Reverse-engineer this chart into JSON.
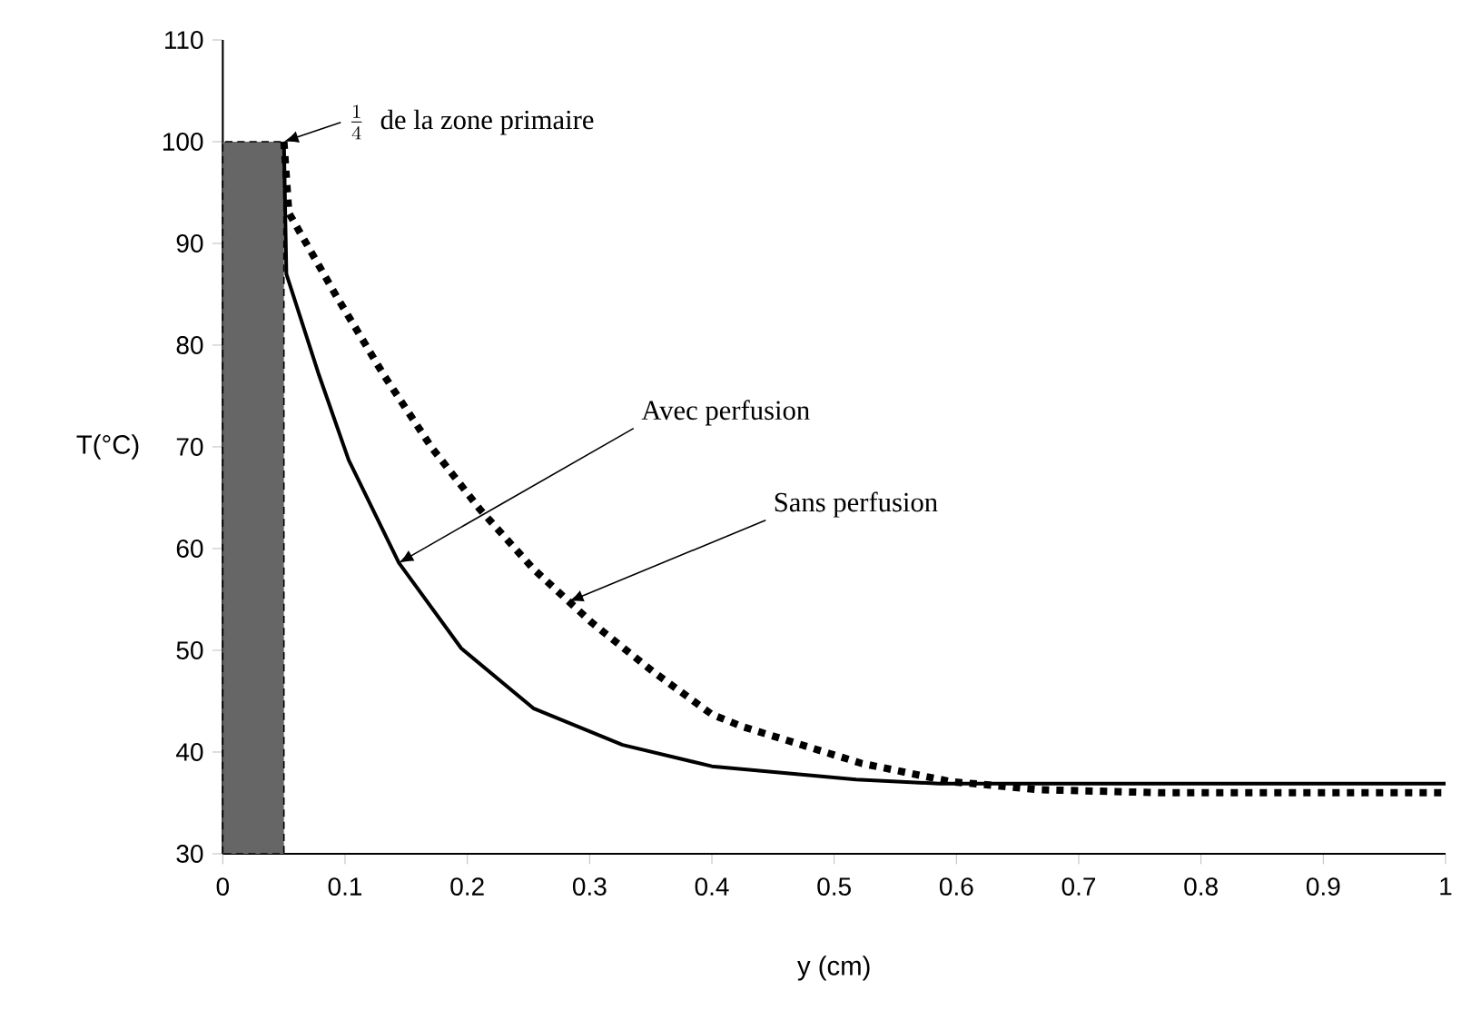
{
  "chart_data": {
    "type": "line",
    "xlabel": "y (cm)",
    "ylabel": "T(°C)",
    "xlim": [
      0,
      1
    ],
    "ylim": [
      30,
      110
    ],
    "xticks": [
      0,
      0.1,
      0.2,
      0.3,
      0.4,
      0.5,
      0.6,
      0.7,
      0.8,
      0.9,
      1
    ],
    "yticks": [
      30,
      40,
      50,
      60,
      70,
      80,
      90,
      100,
      110
    ],
    "grid": false,
    "marker": "none",
    "series": [
      {
        "type": "area",
        "color": "#666666",
        "line_style": "dashed",
        "x": [
          0,
          0.05
        ],
        "values": [
          100,
          100
        ]
      },
      {
        "color": "#000000",
        "line_style": "solid",
        "x": [
          0.05,
          0.052,
          0.078,
          0.103,
          0.144,
          0.195,
          0.254,
          0.327,
          0.4,
          0.518,
          0.586,
          1
        ],
        "values": [
          100,
          87,
          77.3,
          68.7,
          58.6,
          50.2,
          44.3,
          40.7,
          38.6,
          37.3,
          36.9,
          36.9
        ]
      },
      {
        "color": "#000000",
        "line_style": "dotted",
        "x": [
          0.05,
          0.054,
          0.093,
          0.132,
          0.171,
          0.21,
          0.254,
          0.302,
          0.352,
          0.4,
          0.425,
          0.522,
          0.595,
          0.668,
          0.766,
          1
        ],
        "values": [
          100,
          93,
          84.8,
          77,
          69.9,
          63.9,
          58,
          52.7,
          47.9,
          43.7,
          42.5,
          38.9,
          37.1,
          36.3,
          36,
          36
        ]
      }
    ],
    "annotations": [
      {
        "text": "\\frac{1}{4}",
        "x": 0.05,
        "y": 100
      },
      "de la zone primaire",
      {
        "text": "Avec perfusion",
        "x": 0.144,
        "y": 58.6
      },
      {
        "text": "Sans perfusion",
        "x": 0.283,
        "y": 54.8
      }
    ]
  }
}
